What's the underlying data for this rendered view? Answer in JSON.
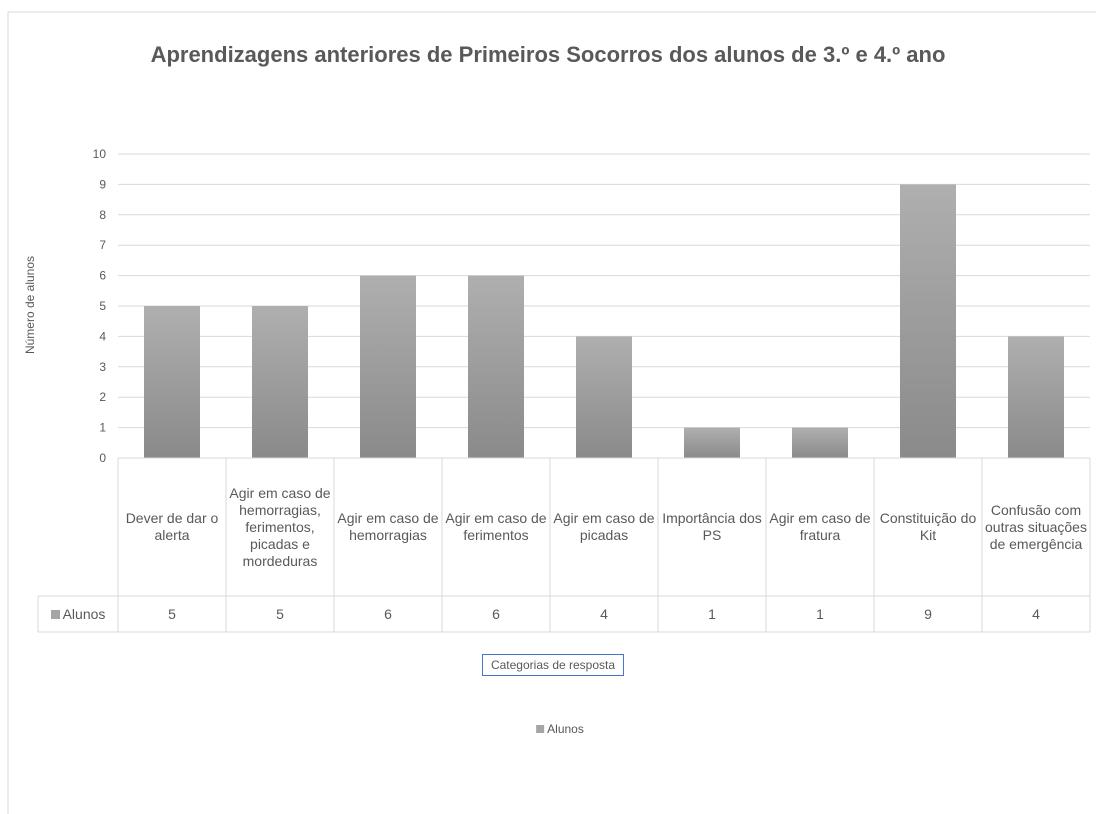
{
  "chart_data": {
    "type": "bar",
    "title": "Aprendizagens anteriores de Primeiros Socorros dos alunos de 3.º e 4.º ano",
    "categories": [
      "Dever de dar o alerta",
      "Agir em caso de hemorragias, ferimentos, picadas e mordeduras",
      "Agir em caso de hemorragias",
      "Agir em caso de ferimentos",
      "Agir em caso de picadas",
      "Importância dos PS",
      "Agir em caso de fratura",
      "Constituição do Kit",
      "Confusão com outras situações de emergência"
    ],
    "series": [
      {
        "name": "Alunos",
        "color": "#a5a5a5",
        "values": [
          5,
          5,
          6,
          6,
          4,
          1,
          1,
          9,
          4
        ]
      }
    ],
    "ylim": [
      0,
      10
    ],
    "yticks": [
      0,
      1,
      2,
      3,
      4,
      5,
      6,
      7,
      8,
      9,
      10
    ],
    "grid": true,
    "xlabel": "Categorias de resposta",
    "ylabel": "Número de alunos",
    "legend": "bottom",
    "data_table": true
  }
}
